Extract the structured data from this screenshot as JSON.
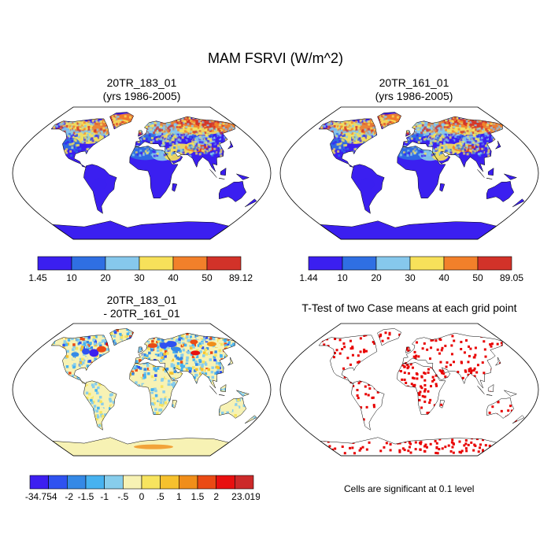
{
  "title": "MAM FSRVI (W/m^2)",
  "colors": {
    "ocean": "#ffffff",
    "coast": "#000000",
    "mean_scale": [
      "#3b1ff0",
      "#2f6fe3",
      "#86c8ec",
      "#f7e15a",
      "#f2802a",
      "#d23229"
    ],
    "diff_scale": [
      "#3d1ff0",
      "#2f52f0",
      "#3589e6",
      "#47b2f0",
      "#87cdec",
      "#f7f2b4",
      "#f7e45f",
      "#f6c12e",
      "#f08e1a",
      "#ea4a14",
      "#e81010",
      "#cc2a2a"
    ],
    "signif": "#e80000"
  },
  "chart_data": [
    {
      "type": "heatmap",
      "panel": "top-left",
      "title_line1": "20TR_183_01",
      "title_line2": "(yrs 1986-2005)",
      "colorbar_labels": [
        "1.45",
        "10",
        "20",
        "30",
        "40",
        "50",
        "89.12"
      ],
      "levels": [
        1.45,
        10,
        20,
        30,
        40,
        50,
        89.12
      ],
      "projection": "Robinson"
    },
    {
      "type": "heatmap",
      "panel": "top-right",
      "title_line1": "20TR_161_01",
      "title_line2": "(yrs 1986-2005)",
      "colorbar_labels": [
        "1.44",
        "10",
        "20",
        "30",
        "40",
        "50",
        "89.05"
      ],
      "levels": [
        1.44,
        10,
        20,
        30,
        40,
        50,
        89.05
      ],
      "projection": "Robinson"
    },
    {
      "type": "heatmap",
      "panel": "bottom-left",
      "title_line1": "20TR_183_01",
      "title_line2": "- 20TR_161_01",
      "colorbar_labels": [
        "-34.754",
        "-2",
        "-1.5",
        "-1",
        "-.5",
        "0",
        ".5",
        "1",
        "1.5",
        "2",
        "23.019"
      ],
      "levels": [
        -34.754,
        -2,
        -1.5,
        -1,
        -0.5,
        0,
        0.5,
        1,
        1.5,
        2,
        23.019
      ],
      "projection": "Robinson"
    },
    {
      "type": "heatmap",
      "panel": "bottom-right",
      "title_line1": "T-Test of two Case means at each grid point",
      "note": "Cells are significant at 0.1 level",
      "projection": "Robinson"
    }
  ]
}
